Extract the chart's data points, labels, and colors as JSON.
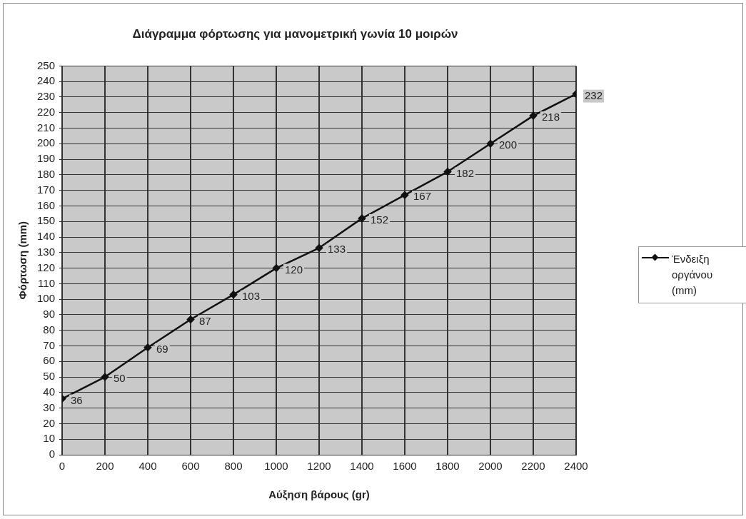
{
  "chart_data": {
    "type": "line",
    "title": "Διάγραμμα φόρτωσης για μανομετρική γωνία 10 μοιρών",
    "xlabel": "Αύξηση βάρους (gr)",
    "ylabel": "Φόρτωση (mm)",
    "x": [
      0,
      200,
      400,
      600,
      800,
      1000,
      1200,
      1400,
      1600,
      1800,
      2000,
      2200,
      2400
    ],
    "series": [
      {
        "name": "Ένδειξη οργάνου (mm)",
        "color": "#111111",
        "values": [
          36,
          50,
          69,
          87,
          103,
          120,
          133,
          152,
          167,
          182,
          200,
          218,
          232
        ]
      }
    ],
    "xlim": [
      0,
      2400
    ],
    "xticks": [
      0,
      200,
      400,
      600,
      800,
      1000,
      1200,
      1400,
      1600,
      1800,
      2000,
      2200,
      2400
    ],
    "ylim": [
      0,
      250
    ],
    "yticks": [
      0,
      10,
      20,
      30,
      40,
      50,
      60,
      70,
      80,
      90,
      100,
      110,
      120,
      130,
      140,
      150,
      160,
      170,
      180,
      190,
      200,
      210,
      220,
      230,
      240,
      250
    ],
    "grid": true,
    "legend": "right",
    "marker": "diamond",
    "line_style": "solid",
    "data_labels": true
  }
}
